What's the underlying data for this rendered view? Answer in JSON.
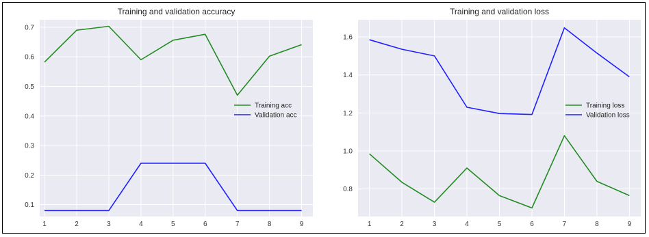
{
  "chart_data": [
    {
      "type": "line",
      "title": "Training and validation accuracy",
      "xlabel": "",
      "ylabel": "",
      "x": [
        1,
        2,
        3,
        4,
        5,
        6,
        7,
        8,
        9
      ],
      "xlim": [
        0.85,
        9.35
      ],
      "ylim": [
        0.06,
        0.725
      ],
      "yticks": [
        0.1,
        0.2,
        0.3,
        0.4,
        0.5,
        0.6,
        0.7
      ],
      "ytick_labels": [
        "0.1",
        "0.2",
        "0.3",
        "0.4",
        "0.5",
        "0.6",
        "0.7"
      ],
      "grid": true,
      "legend_position": "center-right",
      "series": [
        {
          "name": "Training acc",
          "color": "#228b22",
          "values": [
            0.582,
            0.69,
            0.703,
            0.59,
            0.656,
            0.676,
            0.47,
            0.602,
            0.641
          ]
        },
        {
          "name": "Validation acc",
          "color": "#1f1fff",
          "values": [
            0.08,
            0.08,
            0.08,
            0.24,
            0.24,
            0.24,
            0.08,
            0.08,
            0.08
          ]
        }
      ]
    },
    {
      "type": "line",
      "title": "Training and validation loss",
      "xlabel": "",
      "ylabel": "",
      "x": [
        1,
        2,
        3,
        4,
        5,
        6,
        7,
        8,
        9
      ],
      "xlim": [
        0.65,
        9.35
      ],
      "ylim": [
        0.655,
        1.69
      ],
      "yticks": [
        0.8,
        1.0,
        1.2,
        1.4,
        1.6
      ],
      "ytick_labels": [
        "0.8",
        "1.0",
        "1.2",
        "1.4",
        "1.6"
      ],
      "grid": true,
      "legend_position": "center-right",
      "series": [
        {
          "name": "Training loss",
          "color": "#228b22",
          "values": [
            0.985,
            0.835,
            0.73,
            0.91,
            0.765,
            0.7,
            1.08,
            0.84,
            0.765
          ]
        },
        {
          "name": "Validation loss",
          "color": "#1f1fff",
          "values": [
            1.585,
            1.535,
            1.5,
            1.23,
            1.197,
            1.192,
            1.648,
            1.515,
            1.39
          ]
        }
      ]
    }
  ]
}
